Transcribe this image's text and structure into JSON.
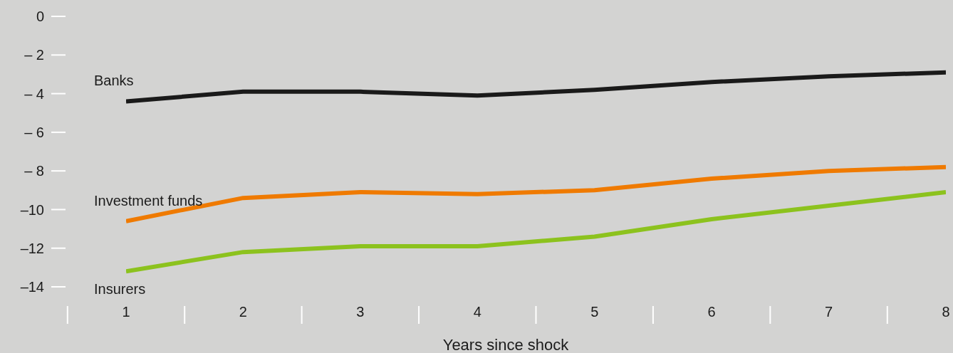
{
  "chart_data": {
    "type": "line",
    "xlabel": "Years since shock",
    "x": [
      1,
      2,
      3,
      4,
      5,
      6,
      7,
      8
    ],
    "series": [
      {
        "name": "Banks",
        "color": "#1a1a1a",
        "values": [
          -4.4,
          -3.9,
          -3.9,
          -4.1,
          -3.8,
          -3.4,
          -3.1,
          -2.9
        ]
      },
      {
        "name": "Investment funds",
        "color": "#ef7a00",
        "values": [
          -10.6,
          -9.4,
          -9.1,
          -9.2,
          -9.0,
          -8.4,
          -8.0,
          -7.8
        ]
      },
      {
        "name": "Insurers",
        "color": "#8cc21e",
        "values": [
          -13.2,
          -12.2,
          -11.9,
          -11.9,
          -11.4,
          -10.5,
          -9.8,
          -9.1
        ]
      }
    ],
    "xlim": [
      1,
      8
    ],
    "xticks": [
      1,
      2,
      3,
      4,
      5,
      6,
      7,
      8
    ],
    "ylim": [
      -14,
      0
    ],
    "yticks": [
      0,
      {
        "value": -2,
        "label": "– 2"
      },
      {
        "value": -4,
        "label": "– 4"
      },
      {
        "value": -6,
        "label": "– 6"
      },
      {
        "value": -8,
        "label": "– 8"
      },
      {
        "value": -10,
        "label": "–10"
      },
      {
        "value": -12,
        "label": "–12"
      },
      {
        "value": -14,
        "label": "–14"
      }
    ],
    "grid": false,
    "legend": false,
    "marker": "none",
    "line_style": "solid"
  }
}
